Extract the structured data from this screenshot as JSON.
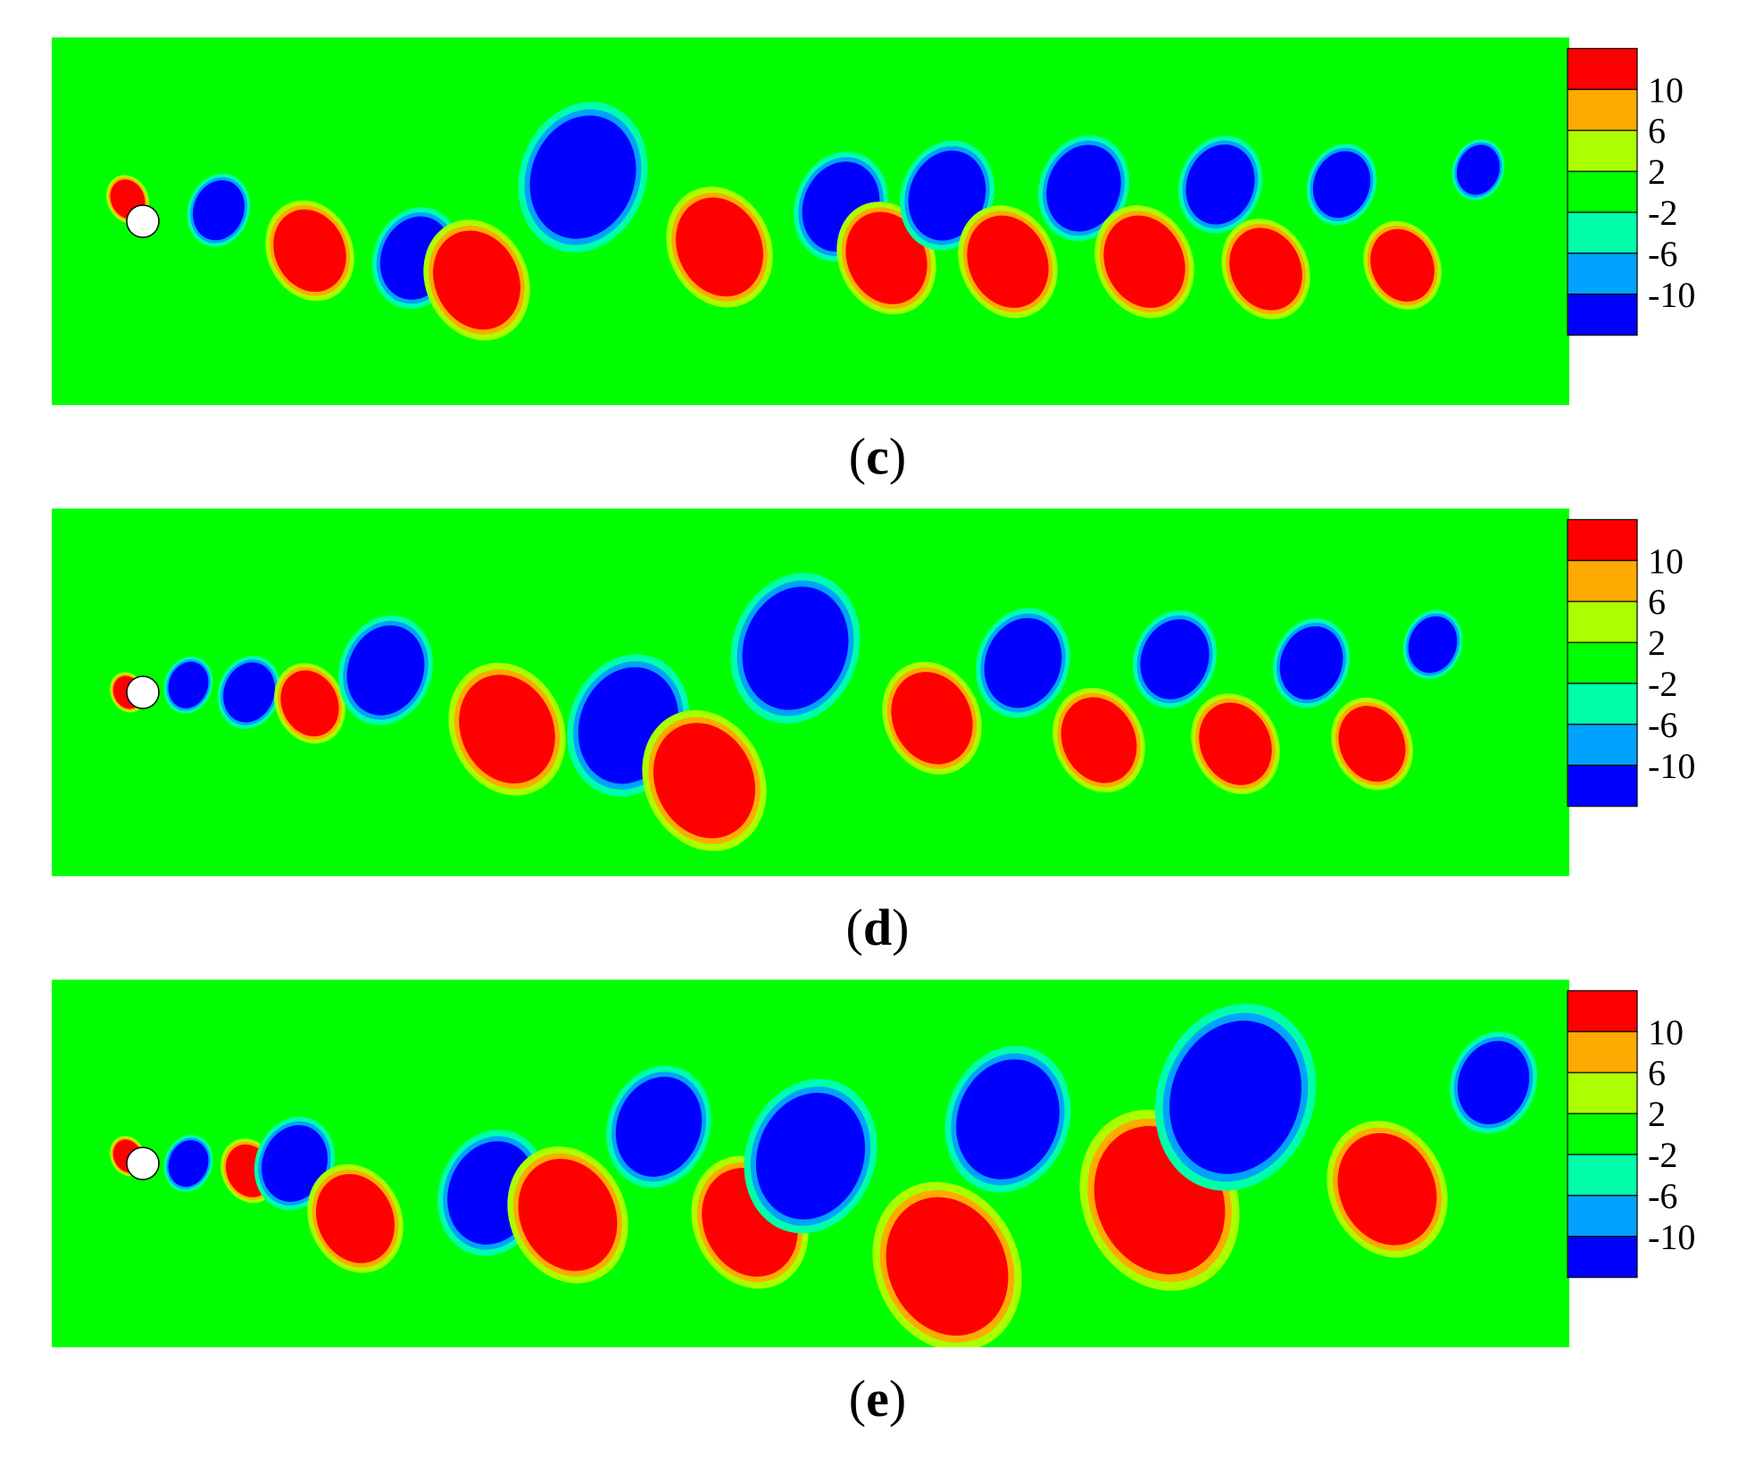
{
  "colorbar": {
    "levels": [
      {
        "color": "#0000ff"
      },
      {
        "color": "#00a2ff"
      },
      {
        "color": "#00ffaa"
      },
      {
        "color": "#00ff00"
      },
      {
        "color": "#aaff00"
      },
      {
        "color": "#ffaa00"
      },
      {
        "color": "#ff0000"
      }
    ],
    "tick_labels": [
      "-10",
      "-6",
      "-2",
      "2",
      "6",
      "10"
    ],
    "field_color": "#00ff00",
    "cylinder_color": "#ffffff"
  },
  "panels": [
    {
      "label": "c"
    },
    {
      "label": "d"
    },
    {
      "label": "e"
    }
  ],
  "chart_data": [
    {
      "type": "heatmap",
      "label": "c",
      "color_scale": {
        "ticks": [
          -10,
          -6,
          -2,
          2,
          6,
          10
        ]
      },
      "description": "",
      "vortices": [
        {
          "x": 0.05,
          "y": 0.44,
          "sign": 1,
          "size": 0.012
        },
        {
          "x": 0.11,
          "y": 0.47,
          "sign": -1,
          "size": 0.018
        },
        {
          "x": 0.17,
          "y": 0.58,
          "sign": 1,
          "size": 0.025
        },
        {
          "x": 0.24,
          "y": 0.6,
          "sign": -1,
          "size": 0.025
        },
        {
          "x": 0.28,
          "y": 0.66,
          "sign": 1,
          "size": 0.03
        },
        {
          "x": 0.35,
          "y": 0.38,
          "sign": -1,
          "size": 0.037
        },
        {
          "x": 0.44,
          "y": 0.57,
          "sign": 1,
          "size": 0.03
        },
        {
          "x": 0.52,
          "y": 0.46,
          "sign": -1,
          "size": 0.027
        },
        {
          "x": 0.55,
          "y": 0.6,
          "sign": 1,
          "size": 0.028
        },
        {
          "x": 0.59,
          "y": 0.43,
          "sign": -1,
          "size": 0.027
        },
        {
          "x": 0.63,
          "y": 0.61,
          "sign": 1,
          "size": 0.028
        },
        {
          "x": 0.68,
          "y": 0.41,
          "sign": -1,
          "size": 0.026
        },
        {
          "x": 0.72,
          "y": 0.61,
          "sign": 1,
          "size": 0.028
        },
        {
          "x": 0.77,
          "y": 0.4,
          "sign": -1,
          "size": 0.024
        },
        {
          "x": 0.8,
          "y": 0.63,
          "sign": 1,
          "size": 0.025
        },
        {
          "x": 0.85,
          "y": 0.4,
          "sign": -1,
          "size": 0.02
        },
        {
          "x": 0.89,
          "y": 0.62,
          "sign": 1,
          "size": 0.022
        },
        {
          "x": 0.94,
          "y": 0.36,
          "sign": -1,
          "size": 0.015
        }
      ]
    },
    {
      "type": "heatmap",
      "label": "d",
      "color_scale": {
        "ticks": [
          -10,
          -6,
          -2,
          2,
          6,
          10
        ]
      },
      "description": "",
      "vortices": [
        {
          "x": 0.05,
          "y": 0.5,
          "sign": 1,
          "size": 0.01
        },
        {
          "x": 0.09,
          "y": 0.48,
          "sign": -1,
          "size": 0.014
        },
        {
          "x": 0.13,
          "y": 0.5,
          "sign": -1,
          "size": 0.018
        },
        {
          "x": 0.17,
          "y": 0.53,
          "sign": 1,
          "size": 0.02
        },
        {
          "x": 0.22,
          "y": 0.44,
          "sign": -1,
          "size": 0.027
        },
        {
          "x": 0.3,
          "y": 0.6,
          "sign": 1,
          "size": 0.033
        },
        {
          "x": 0.38,
          "y": 0.59,
          "sign": -1,
          "size": 0.035
        },
        {
          "x": 0.43,
          "y": 0.74,
          "sign": 1,
          "size": 0.035
        },
        {
          "x": 0.49,
          "y": 0.38,
          "sign": -1,
          "size": 0.037
        },
        {
          "x": 0.58,
          "y": 0.57,
          "sign": 1,
          "size": 0.028
        },
        {
          "x": 0.64,
          "y": 0.42,
          "sign": -1,
          "size": 0.027
        },
        {
          "x": 0.69,
          "y": 0.63,
          "sign": 1,
          "size": 0.026
        },
        {
          "x": 0.74,
          "y": 0.41,
          "sign": -1,
          "size": 0.024
        },
        {
          "x": 0.78,
          "y": 0.64,
          "sign": 1,
          "size": 0.025
        },
        {
          "x": 0.83,
          "y": 0.42,
          "sign": -1,
          "size": 0.022
        },
        {
          "x": 0.87,
          "y": 0.64,
          "sign": 1,
          "size": 0.023
        },
        {
          "x": 0.91,
          "y": 0.37,
          "sign": -1,
          "size": 0.017
        }
      ]
    },
    {
      "type": "heatmap",
      "label": "e",
      "color_scale": {
        "ticks": [
          -10,
          -6,
          -2,
          2,
          6,
          10
        ]
      },
      "description": "",
      "vortices": [
        {
          "x": 0.05,
          "y": 0.48,
          "sign": 1,
          "size": 0.01
        },
        {
          "x": 0.09,
          "y": 0.5,
          "sign": -1,
          "size": 0.014
        },
        {
          "x": 0.13,
          "y": 0.52,
          "sign": 1,
          "size": 0.016
        },
        {
          "x": 0.16,
          "y": 0.5,
          "sign": -1,
          "size": 0.023
        },
        {
          "x": 0.2,
          "y": 0.65,
          "sign": 1,
          "size": 0.027
        },
        {
          "x": 0.29,
          "y": 0.58,
          "sign": -1,
          "size": 0.031
        },
        {
          "x": 0.34,
          "y": 0.64,
          "sign": 1,
          "size": 0.034
        },
        {
          "x": 0.4,
          "y": 0.4,
          "sign": -1,
          "size": 0.03
        },
        {
          "x": 0.46,
          "y": 0.66,
          "sign": 1,
          "size": 0.033
        },
        {
          "x": 0.5,
          "y": 0.48,
          "sign": -1,
          "size": 0.038
        },
        {
          "x": 0.59,
          "y": 0.78,
          "sign": 1,
          "size": 0.042
        },
        {
          "x": 0.63,
          "y": 0.38,
          "sign": -1,
          "size": 0.036
        },
        {
          "x": 0.73,
          "y": 0.6,
          "sign": 1,
          "size": 0.045
        },
        {
          "x": 0.78,
          "y": 0.32,
          "sign": -1,
          "size": 0.046
        },
        {
          "x": 0.88,
          "y": 0.57,
          "sign": 1,
          "size": 0.034
        },
        {
          "x": 0.95,
          "y": 0.28,
          "sign": -1,
          "size": 0.025
        }
      ]
    }
  ]
}
